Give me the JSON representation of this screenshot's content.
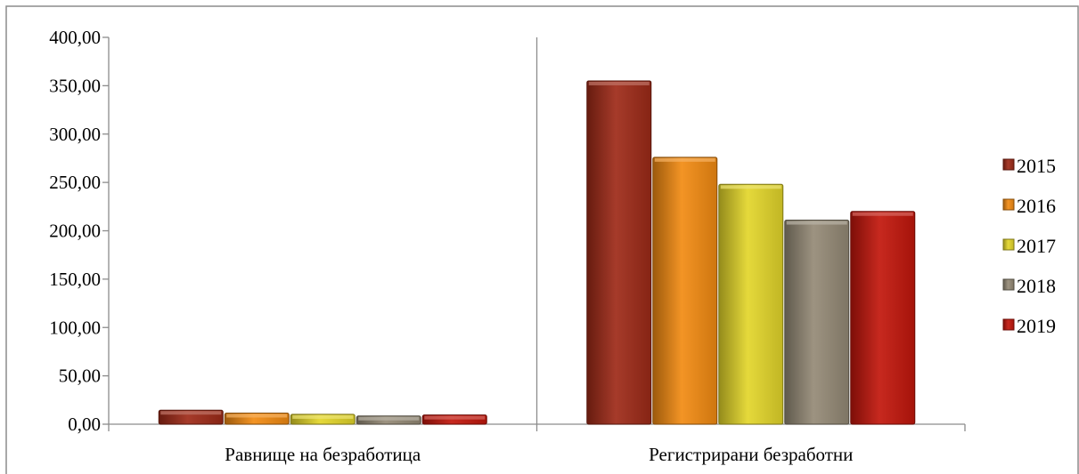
{
  "chart_data": {
    "type": "bar",
    "title": "",
    "xlabel": "",
    "ylabel": "",
    "ylim": [
      0,
      400
    ],
    "y_ticks": [
      "0,00",
      "50,00",
      "100,00",
      "150,00",
      "200,00",
      "250,00",
      "300,00",
      "350,00",
      "400,00"
    ],
    "categories": [
      "Равнище на безработица",
      "Регистрирани безработни"
    ],
    "series": [
      {
        "name": "2015",
        "color": "#9e2a17",
        "values": [
          14.5,
          355
        ]
      },
      {
        "name": "2016",
        "color": "#f28b12",
        "values": [
          11.5,
          276
        ]
      },
      {
        "name": "2017",
        "color": "#e3d62a",
        "values": [
          10.2,
          248
        ]
      },
      {
        "name": "2018",
        "color": "#948a76",
        "values": [
          8.5,
          211
        ]
      },
      {
        "name": "2019",
        "color": "#c2160c",
        "values": [
          9.5,
          220
        ]
      }
    ],
    "legend_position": "right",
    "grid": false
  }
}
